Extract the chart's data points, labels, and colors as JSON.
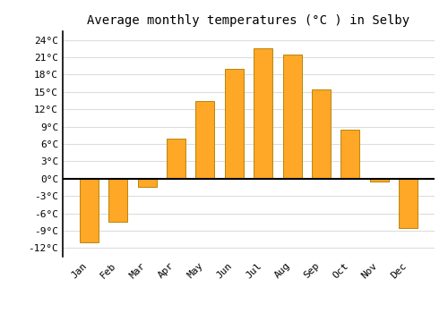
{
  "title": "Average monthly temperatures (°C ) in Selby",
  "months": [
    "Jan",
    "Feb",
    "Mar",
    "Apr",
    "May",
    "Jun",
    "Jul",
    "Aug",
    "Sep",
    "Oct",
    "Nov",
    "Dec"
  ],
  "temperatures": [
    -11,
    -7.5,
    -1.5,
    7,
    13.5,
    19,
    22.5,
    21.5,
    15.5,
    8.5,
    -0.5,
    -8.5
  ],
  "bar_color": "#FFA726",
  "bar_edge_color": "#B8860B",
  "yticks": [
    -12,
    -9,
    -6,
    -3,
    0,
    3,
    6,
    9,
    12,
    15,
    18,
    21,
    24
  ],
  "ytick_labels": [
    "-12°C",
    "-9°C",
    "-6°C",
    "-3°C",
    "0°C",
    "3°C",
    "6°C",
    "9°C",
    "12°C",
    "15°C",
    "18°C",
    "21°C",
    "24°C"
  ],
  "ylim": [
    -13.5,
    25.5
  ],
  "grid_color": "#dddddd",
  "bg_color": "#ffffff",
  "title_fontsize": 10,
  "tick_fontsize": 8,
  "bar_width": 0.65
}
